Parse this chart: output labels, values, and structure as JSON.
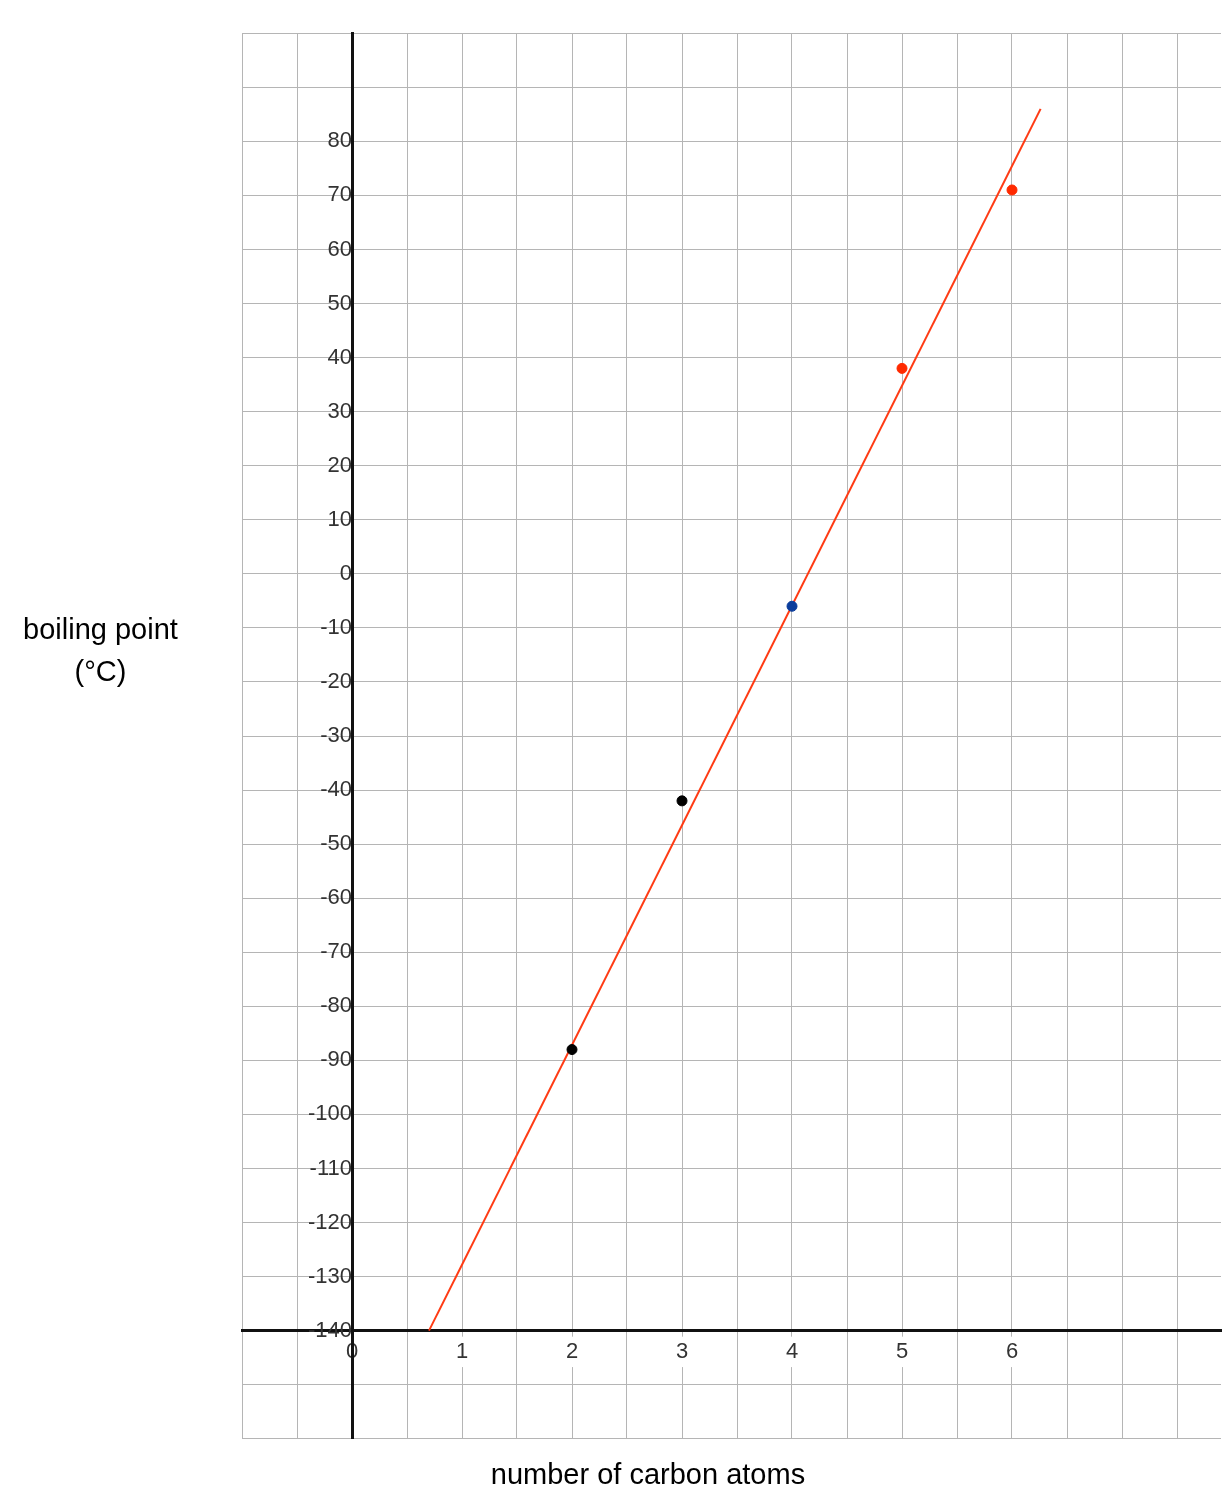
{
  "chart_data": {
    "type": "scatter",
    "xlabel": "number of carbon atoms",
    "ylabel": "boiling point (°C)",
    "series": [
      {
        "color": "#000000",
        "x": [
          2,
          3
        ],
        "values": [
          -88,
          -42
        ],
        "marker": "circle"
      },
      {
        "color": "#0b3d9c",
        "x": [
          4
        ],
        "values": [
          -6
        ],
        "marker": "circle"
      },
      {
        "color": "#ff2a00",
        "x": [
          5,
          6
        ],
        "values": [
          38,
          71
        ],
        "marker": "circle"
      },
      {
        "type": "line",
        "color": "#ff3b14",
        "x": [
          0.7,
          6.26
        ],
        "values": [
          -140,
          86
        ],
        "marker": "none"
      }
    ],
    "xlim": [
      -1,
      7.9
    ],
    "ylim": [
      -160,
      100
    ],
    "xticks": [
      {
        "value": -1,
        "label": null
      },
      {
        "value": -0.5,
        "label": null
      },
      0,
      {
        "value": 0.5,
        "label": null
      },
      1,
      {
        "value": 1.5,
        "label": null
      },
      2,
      {
        "value": 2.5,
        "label": null
      },
      3,
      {
        "value": 3.5,
        "label": null
      },
      4,
      {
        "value": 4.5,
        "label": null
      },
      5,
      {
        "value": 5.5,
        "label": null
      },
      6,
      {
        "value": 6.5,
        "label": null
      },
      {
        "value": 7,
        "label": null
      },
      {
        "value": 7.5,
        "label": null
      }
    ],
    "yticks": [
      {
        "value": -160,
        "label": null
      },
      {
        "value": -150,
        "label": null
      },
      -140,
      -130,
      -120,
      -110,
      -100,
      -90,
      -80,
      -70,
      -60,
      -50,
      -40,
      -30,
      -20,
      -10,
      0,
      10,
      20,
      30,
      40,
      50,
      60,
      70,
      80,
      {
        "value": 90,
        "label": null
      },
      {
        "value": 100,
        "label": null
      }
    ],
    "grid": true,
    "legend": false
  }
}
